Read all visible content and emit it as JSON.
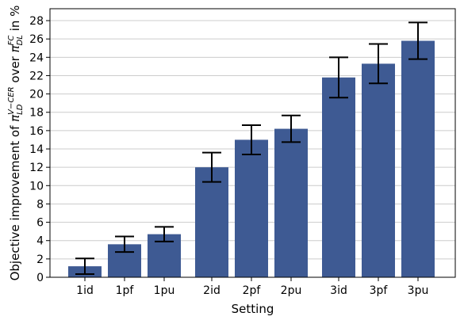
{
  "chart_data": {
    "type": "bar",
    "xlabel": "Setting",
    "ylabel_parts": {
      "prefix": "Objective improvement of ",
      "pi1": "π",
      "sub1": "LD",
      "sup1": "V−CER",
      "mid": " over ",
      "pi2": "π",
      "sub2": "DL",
      "sup2": "FC",
      "suffix": " in %"
    },
    "categories": [
      "1id",
      "1pf",
      "1pu",
      "2id",
      "2pf",
      "2pu",
      "3id",
      "3pf",
      "3pu"
    ],
    "groups": [
      [
        0,
        1,
        2
      ],
      [
        3,
        4,
        5
      ],
      [
        6,
        7,
        8
      ]
    ],
    "values": [
      1.2,
      3.6,
      4.7,
      12.0,
      15.0,
      16.2,
      21.8,
      23.3,
      25.8
    ],
    "errors": [
      0.85,
      0.85,
      0.8,
      1.6,
      1.6,
      1.45,
      2.2,
      2.15,
      2.0
    ],
    "ylim": [
      0,
      29.3
    ],
    "yticks": [
      0,
      2,
      4,
      6,
      8,
      10,
      12,
      14,
      16,
      18,
      20,
      22,
      24,
      26,
      28
    ],
    "grid": true,
    "bar_color": "#3e5a93",
    "grid_color": "#cccccc"
  }
}
